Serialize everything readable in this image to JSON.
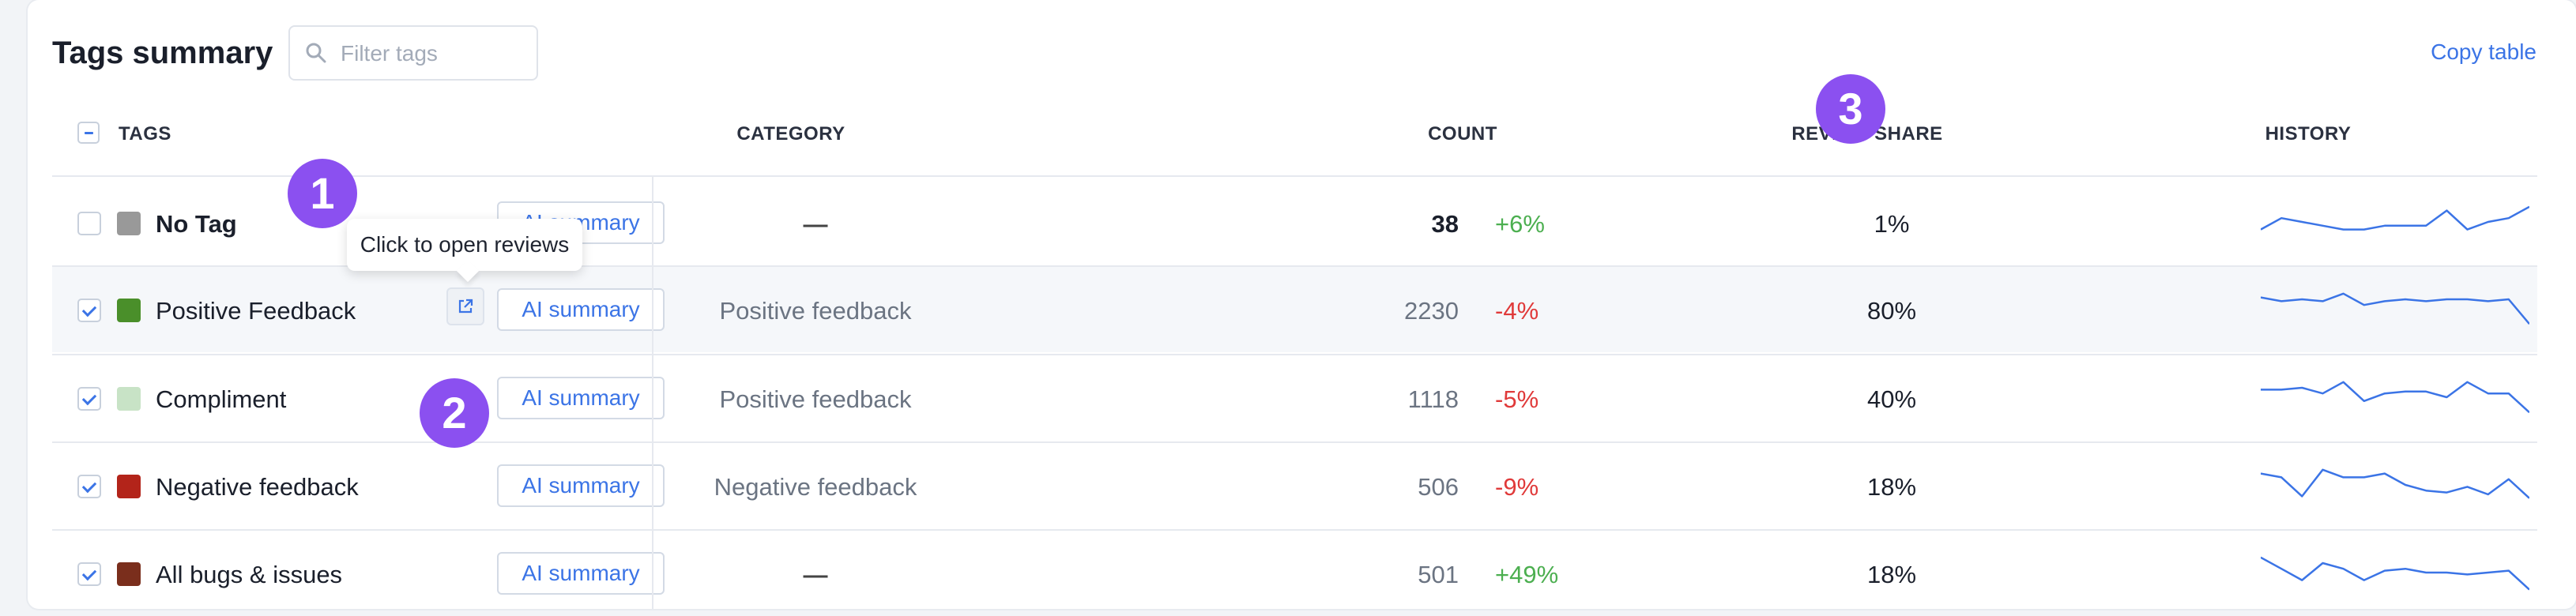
{
  "header": {
    "title": "Tags summary",
    "filter_placeholder": "Filter tags",
    "copy_label": "Copy table"
  },
  "columns": {
    "tags": "TAGS",
    "category": "CATEGORY",
    "count": "COUNT",
    "review_share": "REVIEW SHARE",
    "history": "HISTORY"
  },
  "rows": [
    {
      "name": "No Tag",
      "color": "#999999",
      "checked": false,
      "category": "—",
      "count": "38",
      "change": "+6%",
      "change_color": "#4caf50",
      "share": "1%",
      "ai_label": "AI summary",
      "history": [
        3,
        6,
        5,
        4,
        3,
        3,
        4,
        4,
        4,
        8,
        3,
        5,
        6,
        9
      ]
    },
    {
      "name": "Positive Feedback",
      "color": "#4a8f2a",
      "checked": true,
      "category": "Positive feedback",
      "count": "2230",
      "change": "-4%",
      "change_color": "#e03a3a",
      "share": "80%",
      "ai_label": "AI summary",
      "history": [
        8,
        7,
        7.5,
        7,
        9,
        6,
        7,
        7.5,
        7,
        7.5,
        7.5,
        7,
        7.5,
        1
      ]
    },
    {
      "name": "Compliment",
      "color": "#c8e3c6",
      "checked": true,
      "category": "Positive feedback",
      "count": "1118",
      "change": "-5%",
      "change_color": "#e03a3a",
      "share": "40%",
      "ai_label": "AI summary",
      "history": [
        7,
        7,
        7.5,
        6,
        9,
        4,
        6,
        6.5,
        6.5,
        5,
        9,
        6,
        6,
        1
      ]
    },
    {
      "name": "Negative feedback",
      "color": "#b3241a",
      "checked": true,
      "category": "Negative feedback",
      "count": "506",
      "change": "-9%",
      "change_color": "#e03a3a",
      "share": "18%",
      "ai_label": "AI summary",
      "history": [
        8,
        7,
        2,
        9,
        7,
        7,
        8,
        5,
        3.5,
        3,
        4.5,
        2.5,
        6.5,
        1.5
      ]
    },
    {
      "name": "All bugs & issues",
      "color": "#7a2e1c",
      "checked": true,
      "category": "—",
      "count": "501",
      "change": "+49%",
      "change_color": "#4caf50",
      "share": "18%",
      "ai_label": "AI summary",
      "history": [
        9,
        6,
        3,
        7.5,
        6,
        3,
        5.5,
        6,
        5,
        5,
        4.5,
        5,
        5.5,
        0.5
      ]
    }
  ],
  "tooltip": "Click to open reviews",
  "markers": [
    "1",
    "2",
    "3"
  ],
  "icons": {
    "search": "search-icon",
    "open": "external-link-icon",
    "master_checkbox": "indeterminate-checkbox"
  }
}
